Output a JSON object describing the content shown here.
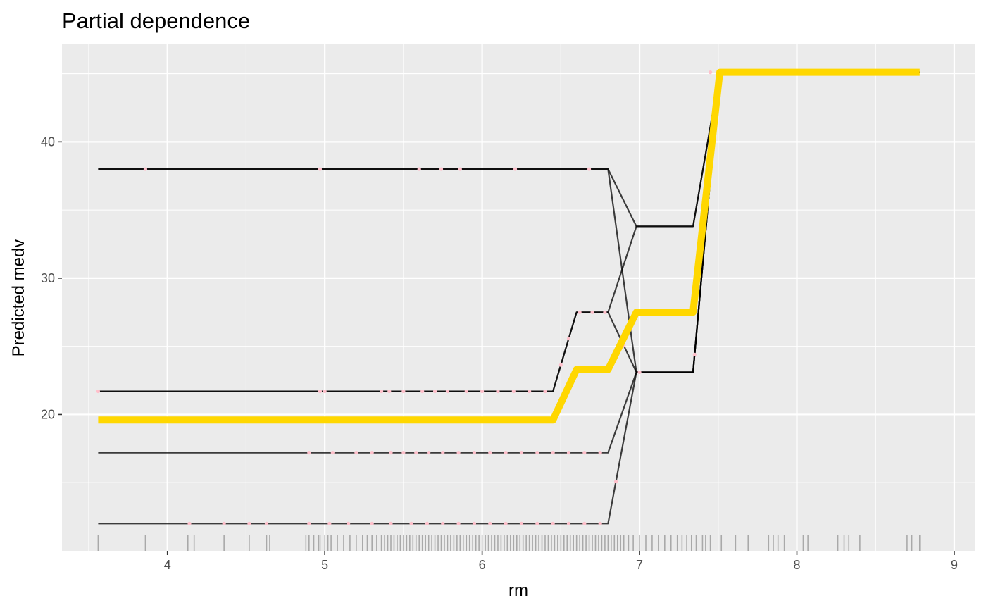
{
  "chart_data": {
    "type": "line",
    "title": "Partial dependence",
    "xlabel": "rm",
    "ylabel": "Predicted medv",
    "xlim": [
      3.33,
      9.13
    ],
    "ylim": [
      10.0,
      47.2
    ],
    "x_ticks": [
      4,
      5,
      6,
      7,
      8,
      9
    ],
    "y_ticks": [
      20,
      30,
      40
    ],
    "grid": true,
    "background": "#ebebeb",
    "colors": {
      "ice_line": "#000000",
      "ice_points": "#ffc0cb",
      "pd_line": "#ffd700",
      "rug": "#000000"
    },
    "series": [
      {
        "kind": "ice",
        "x": [
          3.56,
          6.8,
          6.98,
          7.34,
          7.51,
          8.78
        ],
        "y": [
          38.0,
          38.0,
          33.8,
          33.8,
          45.1,
          45.1
        ],
        "points": [
          3.86,
          4.97,
          5.6,
          5.74,
          5.86,
          6.21,
          6.68
        ]
      },
      {
        "kind": "ice",
        "x": [
          3.56,
          6.8,
          6.98,
          7.34,
          7.51,
          8.78
        ],
        "y": [
          38.0,
          38.0,
          23.1,
          23.1,
          45.1,
          45.1
        ],
        "points": []
      },
      {
        "kind": "ice",
        "x": [
          3.56,
          6.45,
          6.6,
          6.8,
          6.98,
          7.34,
          7.51,
          8.78
        ],
        "y": [
          21.7,
          21.7,
          27.5,
          27.5,
          33.8,
          33.8,
          45.1,
          45.1
        ],
        "points": [
          3.56,
          4.97,
          5.0,
          5.36,
          5.41,
          5.5,
          5.62,
          5.7,
          5.78,
          5.9,
          6.0,
          6.1,
          6.2,
          6.3,
          6.4,
          6.5
        ]
      },
      {
        "kind": "ice",
        "x": [
          3.56,
          6.45,
          6.6,
          6.8,
          6.98,
          7.34,
          7.51,
          8.78
        ],
        "y": [
          21.7,
          21.7,
          27.5,
          27.5,
          23.1,
          23.1,
          45.1,
          45.1
        ],
        "points": [
          6.55,
          6.62,
          6.7,
          6.78,
          6.9
        ]
      },
      {
        "kind": "ice",
        "x": [
          3.56,
          6.8,
          6.98,
          7.34,
          7.51,
          8.78
        ],
        "y": [
          17.2,
          17.2,
          23.1,
          23.1,
          45.1,
          45.1
        ],
        "points": [
          4.9,
          5.05,
          5.2,
          5.3,
          5.42,
          5.5,
          5.58,
          5.66,
          5.75,
          5.85,
          5.95,
          6.05,
          6.15,
          6.25,
          6.35,
          6.45,
          6.55,
          6.65,
          6.75,
          7.0,
          7.35
        ]
      },
      {
        "kind": "ice",
        "x": [
          3.56,
          6.8,
          6.98,
          7.34,
          7.51,
          8.78
        ],
        "y": [
          12.0,
          12.0,
          23.1,
          23.1,
          45.1,
          45.1
        ],
        "points": [
          4.14,
          4.36,
          4.52,
          4.63,
          4.9,
          5.03,
          5.15,
          5.3,
          5.42,
          5.55,
          5.65,
          5.75,
          5.85,
          5.95,
          6.05,
          6.15,
          6.25,
          6.35,
          6.45,
          6.55,
          6.65,
          6.75,
          6.85
        ]
      },
      {
        "kind": "pd",
        "x": [
          3.56,
          6.45,
          6.6,
          6.8,
          6.98,
          7.34,
          7.51,
          8.78
        ],
        "y": [
          19.6,
          19.6,
          23.3,
          23.3,
          27.5,
          27.5,
          45.1,
          45.1
        ]
      }
    ],
    "upper_points": {
      "y": 45.1,
      "x": [
        7.45,
        7.55,
        7.65,
        7.7,
        7.8,
        7.85,
        7.9,
        8.0,
        8.05,
        8.1,
        8.25,
        8.3,
        8.35,
        8.4,
        8.7,
        8.75
      ]
    },
    "rug_x": [
      3.56,
      3.86,
      4.13,
      4.17,
      4.36,
      4.52,
      4.63,
      4.65,
      4.88,
      4.9,
      4.93,
      4.96,
      4.97,
      5.0,
      5.02,
      5.04,
      5.08,
      5.12,
      5.16,
      5.2,
      5.24,
      5.27,
      5.3,
      5.33,
      5.36,
      5.38,
      5.4,
      5.42,
      5.44,
      5.46,
      5.48,
      5.5,
      5.52,
      5.54,
      5.56,
      5.58,
      5.6,
      5.62,
      5.64,
      5.66,
      5.68,
      5.7,
      5.72,
      5.74,
      5.76,
      5.78,
      5.8,
      5.82,
      5.84,
      5.86,
      5.88,
      5.9,
      5.92,
      5.94,
      5.96,
      5.98,
      6.0,
      6.02,
      6.04,
      6.06,
      6.08,
      6.1,
      6.12,
      6.14,
      6.16,
      6.18,
      6.2,
      6.22,
      6.24,
      6.26,
      6.28,
      6.3,
      6.32,
      6.34,
      6.36,
      6.38,
      6.4,
      6.42,
      6.44,
      6.46,
      6.48,
      6.5,
      6.52,
      6.54,
      6.56,
      6.58,
      6.6,
      6.62,
      6.64,
      6.66,
      6.68,
      6.7,
      6.72,
      6.74,
      6.76,
      6.78,
      6.8,
      6.82,
      6.84,
      6.86,
      6.88,
      6.9,
      6.93,
      6.96,
      7.0,
      7.04,
      7.08,
      7.12,
      7.16,
      7.2,
      7.24,
      7.27,
      7.3,
      7.33,
      7.36,
      7.4,
      7.42,
      7.45,
      7.52,
      7.61,
      7.69,
      7.82,
      7.85,
      7.88,
      7.92,
      8.04,
      8.07,
      8.26,
      8.3,
      8.33,
      8.4,
      8.7,
      8.73,
      8.78
    ]
  }
}
